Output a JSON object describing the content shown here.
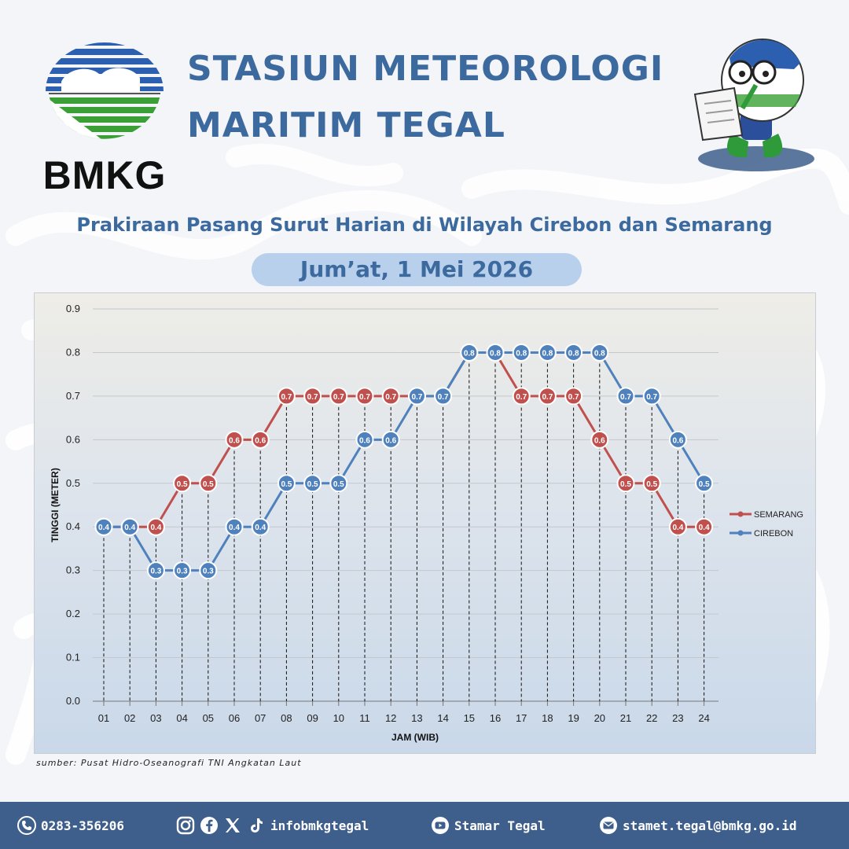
{
  "header": {
    "logo_text": "BMKG",
    "title_line1": "STASIUN METEOROLOGI",
    "title_line2": "MARITIM TEGAL",
    "subtitle": "Prakiraan Pasang Surut Harian di Wilayah Cirebon dan Semarang",
    "date": "Jum’at, 1 Mei 2026"
  },
  "colors": {
    "title": "#3d6a9e",
    "semarang": "#c0504d",
    "cirebon": "#4f81bd",
    "footer": "#3e5f8c"
  },
  "chart_data": {
    "type": "line",
    "xlabel": "JAM (WIB)",
    "ylabel": "TINGGI (METER)",
    "ylim": [
      0,
      0.9
    ],
    "yticks": [
      "0.0",
      "0.1",
      "0.2",
      "0.3",
      "0.4",
      "0.5",
      "0.6",
      "0.7",
      "0.8",
      "0.9"
    ],
    "categories": [
      "01",
      "02",
      "03",
      "04",
      "05",
      "06",
      "07",
      "08",
      "09",
      "10",
      "11",
      "12",
      "13",
      "14",
      "15",
      "16",
      "17",
      "18",
      "19",
      "20",
      "21",
      "22",
      "23",
      "24"
    ],
    "series": [
      {
        "name": "SEMARANG",
        "color": "#c0504d",
        "values": [
          0.4,
          0.4,
          0.4,
          0.5,
          0.5,
          0.6,
          0.6,
          0.7,
          0.7,
          0.7,
          0.7,
          0.7,
          0.7,
          0.7,
          0.8,
          0.8,
          0.7,
          0.7,
          0.7,
          0.6,
          0.5,
          0.5,
          0.4,
          0.4
        ]
      },
      {
        "name": "CIREBON",
        "color": "#4f81bd",
        "values": [
          0.4,
          0.4,
          0.3,
          0.3,
          0.3,
          0.4,
          0.4,
          0.5,
          0.5,
          0.5,
          0.6,
          0.6,
          0.7,
          0.7,
          0.8,
          0.8,
          0.8,
          0.8,
          0.8,
          0.8,
          0.7,
          0.7,
          0.6,
          0.5
        ]
      }
    ],
    "grid": true,
    "legend": "right"
  },
  "source": "sumber: Pusat Hidro-Oseanografi TNI Angkatan Laut",
  "footer": {
    "phone": "0283-356206",
    "social": "infobmkgtegal",
    "youtube": "Stamar Tegal",
    "email": "stamet.tegal@bmkg.go.id"
  }
}
